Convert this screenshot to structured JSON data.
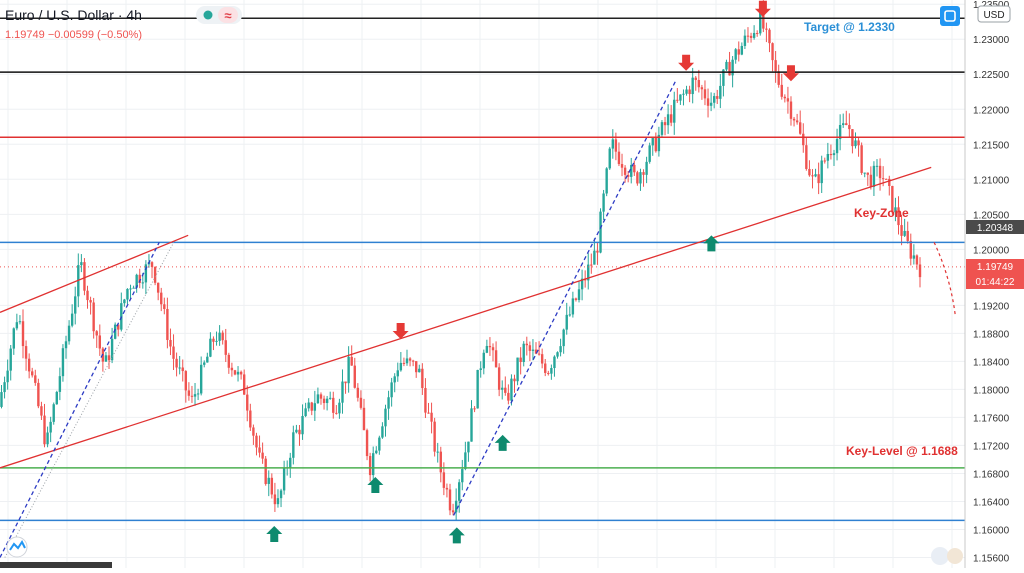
{
  "header": {
    "title": "Euro / U.S. Dollar · 4h",
    "ohlc": "1.19749 −0.00599 (−0.50%)"
  },
  "price_scale": {
    "currency": "USD",
    "ticks": [
      "1.23500",
      "1.23000",
      "1.22500",
      "1.22000",
      "1.21500",
      "1.21000",
      "1.20500",
      "1.20000",
      "1.19200",
      "1.18800",
      "1.18400",
      "1.18000",
      "1.17600",
      "1.17200",
      "1.16800",
      "1.16400",
      "1.16000",
      "1.15600"
    ],
    "marker_prev": "1.20348",
    "marker_last": "1.19749",
    "countdown": "01:44:22"
  },
  "annotations": {
    "target": "Target @ 1.2330",
    "key_zone": "Key-Zone",
    "key_level": "Key-Level @ 1.1688"
  },
  "colors": {
    "up": "#26a69a",
    "down": "#ef5350",
    "annotation_red": "#e03131",
    "target_blue": "#2a8fd6",
    "level_blue": "#2f80d1",
    "level_green": "#4caf50",
    "arrow_green": "#0e8a6e"
  },
  "chart_data": {
    "type": "candlestick",
    "symbol": "Euro / U.S. Dollar",
    "timeframe": "4h",
    "ylim": [
      1.1545,
      1.2356
    ],
    "last_price": 1.19749,
    "change": -0.00599,
    "change_pct": -0.5,
    "price_path": [
      [
        0.0,
        1.1775
      ],
      [
        0.02,
        1.191
      ],
      [
        0.05,
        1.172
      ],
      [
        0.085,
        1.198
      ],
      [
        0.11,
        1.183
      ],
      [
        0.135,
        1.195
      ],
      [
        0.16,
        1.198
      ],
      [
        0.18,
        1.185
      ],
      [
        0.2,
        1.178
      ],
      [
        0.225,
        1.188
      ],
      [
        0.255,
        1.18
      ],
      [
        0.27,
        1.17
      ],
      [
        0.29,
        1.1635
      ],
      [
        0.305,
        1.173
      ],
      [
        0.33,
        1.179
      ],
      [
        0.35,
        1.178
      ],
      [
        0.365,
        1.184
      ],
      [
        0.385,
        1.169
      ],
      [
        0.4,
        1.177
      ],
      [
        0.415,
        1.184
      ],
      [
        0.435,
        1.183
      ],
      [
        0.455,
        1.17
      ],
      [
        0.47,
        1.163
      ],
      [
        0.485,
        1.172
      ],
      [
        0.505,
        1.188
      ],
      [
        0.525,
        1.178
      ],
      [
        0.545,
        1.186
      ],
      [
        0.57,
        1.183
      ],
      [
        0.59,
        1.19
      ],
      [
        0.62,
        1.2
      ],
      [
        0.635,
        1.215
      ],
      [
        0.66,
        1.21
      ],
      [
        0.7,
        1.22
      ],
      [
        0.72,
        1.224
      ],
      [
        0.74,
        1.221
      ],
      [
        0.76,
        1.227
      ],
      [
        0.775,
        1.23
      ],
      [
        0.79,
        1.233
      ],
      [
        0.805,
        1.225
      ],
      [
        0.825,
        1.219
      ],
      [
        0.845,
        1.209
      ],
      [
        0.86,
        1.214
      ],
      [
        0.88,
        1.218
      ],
      [
        0.9,
        1.21
      ],
      [
        0.915,
        1.211
      ],
      [
        0.94,
        1.201
      ],
      [
        0.955,
        1.1975
      ]
    ],
    "candle_count": 300,
    "horizontal_levels": [
      {
        "price": 1.233,
        "color": "#222222",
        "label": "Target @ 1.2330"
      },
      {
        "price": 1.2253,
        "color": "#111111"
      },
      {
        "price": 1.216,
        "color": "#e03131"
      },
      {
        "price": 1.201,
        "color": "#2f80d1"
      },
      {
        "price": 1.1688,
        "color": "#4caf50",
        "label": "Key-Level @ 1.1688"
      },
      {
        "price": 1.1613,
        "color": "#2f80d1"
      }
    ],
    "trendlines": [
      {
        "from": [
          0.0,
          1.1688
        ],
        "to": [
          0.965,
          1.2117
        ],
        "color": "#e03131",
        "style": "solid"
      },
      {
        "from": [
          0.0,
          1.191
        ],
        "to": [
          0.195,
          1.202
        ],
        "color": "#e03131",
        "style": "solid"
      },
      {
        "from": [
          0.0,
          1.156
        ],
        "to": [
          0.165,
          1.201
        ],
        "color": "#2c3bc4",
        "style": "dashed"
      },
      {
        "from": [
          0.47,
          1.162
        ],
        "to": [
          0.7,
          1.224
        ],
        "color": "#2c3bc4",
        "style": "dashed"
      }
    ],
    "signals": [
      {
        "type": "sell",
        "x": 0.733,
        "price": 1.2255
      },
      {
        "type": "sell",
        "x": 0.815,
        "price": 1.2332
      },
      {
        "type": "sell",
        "x": 0.845,
        "price": 1.224
      },
      {
        "type": "sell",
        "x": 0.428,
        "price": 1.1872
      },
      {
        "type": "buy",
        "x": 0.293,
        "price": 1.1605
      },
      {
        "type": "buy",
        "x": 0.401,
        "price": 1.1675
      },
      {
        "type": "buy",
        "x": 0.488,
        "price": 1.1603
      },
      {
        "type": "buy",
        "x": 0.537,
        "price": 1.1735
      },
      {
        "type": "buy",
        "x": 0.76,
        "price": 1.202
      }
    ]
  }
}
